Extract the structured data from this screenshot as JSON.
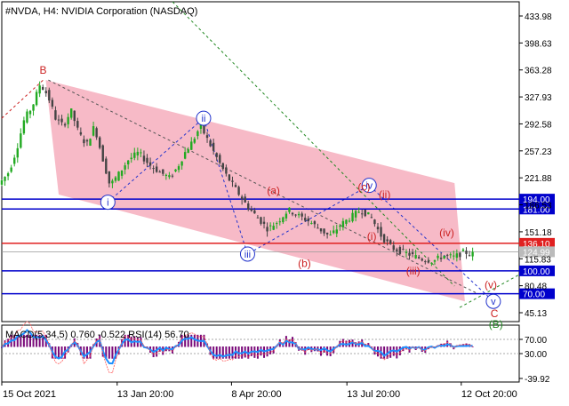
{
  "header": {
    "title": "#NVDA, H4:  NVIDIA Corporation (NASDAQ)"
  },
  "colors": {
    "channel_fill": "#f4a3b4",
    "blue_line": "#0000cc",
    "red_line": "#e02020",
    "candle_bull": "#22aa22",
    "candle_bear": "#444444",
    "wave_red": "#cc2222",
    "wave_blue": "#2233cc",
    "wave_green": "#228822",
    "macd_hist": "#7a0a7a",
    "macd_signal": "#1e90ff",
    "rsi_line": "#ff5555"
  },
  "chart_data": {
    "type": "candlestick",
    "symbol": "#NVDA",
    "timeframe": "H4",
    "ylim": [
      45.13,
      433.98
    ],
    "y_ticks": [
      {
        "value": 433.98,
        "label": "433.98"
      },
      {
        "value": 398.63,
        "label": "398.63"
      },
      {
        "value": 363.28,
        "label": "363.28"
      },
      {
        "value": 327.93,
        "label": "327.93"
      },
      {
        "value": 292.58,
        "label": "292.58"
      },
      {
        "value": 257.23,
        "label": "257.23"
      },
      {
        "value": 221.88,
        "label": "221.88"
      },
      {
        "value": 186.53,
        "label": "186.53"
      },
      {
        "value": 151.18,
        "label": "151.18"
      },
      {
        "value": 115.83,
        "label": "115.83"
      },
      {
        "value": 80.48,
        "label": "80.48"
      },
      {
        "value": 45.13,
        "label": "45.13"
      }
    ],
    "x_ticks": [
      {
        "pos": 0.0,
        "label": "15 Oct 2021"
      },
      {
        "pos": 0.223,
        "label": "13 Jan 20:00"
      },
      {
        "pos": 0.444,
        "label": "8 Apr 20:00"
      },
      {
        "pos": 0.667,
        "label": "13 Jul 20:00"
      },
      {
        "pos": 0.888,
        "label": "12 Oct 20:00"
      }
    ],
    "horizontal_levels": [
      {
        "value": 194.0,
        "label": "194.00",
        "color": "blue"
      },
      {
        "value": 181.0,
        "label": "181.00",
        "color": "blue"
      },
      {
        "value": 136.1,
        "label": "136.10",
        "color": "red"
      },
      {
        "value": 124.99,
        "label": "124.99",
        "color": "gray"
      },
      {
        "value": 100.0,
        "label": "100.00",
        "color": "blue"
      },
      {
        "value": 70.0,
        "label": "70.00",
        "color": "blue"
      }
    ],
    "price_path": [
      [
        0.0,
        213
      ],
      [
        0.02,
        230
      ],
      [
        0.035,
        260
      ],
      [
        0.05,
        300
      ],
      [
        0.065,
        315
      ],
      [
        0.08,
        345
      ],
      [
        0.095,
        330
      ],
      [
        0.11,
        300
      ],
      [
        0.125,
        290
      ],
      [
        0.14,
        310
      ],
      [
        0.155,
        280
      ],
      [
        0.17,
        265
      ],
      [
        0.185,
        290
      ],
      [
        0.2,
        250
      ],
      [
        0.215,
        212
      ],
      [
        0.23,
        225
      ],
      [
        0.25,
        245
      ],
      [
        0.27,
        255
      ],
      [
        0.29,
        240
      ],
      [
        0.31,
        230
      ],
      [
        0.33,
        222
      ],
      [
        0.345,
        235
      ],
      [
        0.36,
        255
      ],
      [
        0.375,
        270
      ],
      [
        0.39,
        290
      ],
      [
        0.405,
        270
      ],
      [
        0.42,
        250
      ],
      [
        0.44,
        225
      ],
      [
        0.46,
        205
      ],
      [
        0.48,
        185
      ],
      [
        0.5,
        170
      ],
      [
        0.52,
        155
      ],
      [
        0.54,
        165
      ],
      [
        0.56,
        180
      ],
      [
        0.58,
        172
      ],
      [
        0.6,
        165
      ],
      [
        0.62,
        155
      ],
      [
        0.64,
        145
      ],
      [
        0.66,
        160
      ],
      [
        0.68,
        170
      ],
      [
        0.7,
        180
      ],
      [
        0.72,
        170
      ],
      [
        0.74,
        145
      ],
      [
        0.76,
        130
      ],
      [
        0.78,
        125
      ],
      [
        0.8,
        120
      ],
      [
        0.82,
        115
      ],
      [
        0.84,
        113
      ],
      [
        0.86,
        120
      ],
      [
        0.88,
        118
      ],
      [
        0.9,
        125
      ],
      [
        0.91,
        122
      ]
    ],
    "wave_labels": [
      {
        "text": "B",
        "x": 0.08,
        "y": 363,
        "color": "red"
      },
      {
        "text": "ii",
        "x": 0.39,
        "y": 300,
        "color": "blue",
        "circled": true
      },
      {
        "text": "i",
        "x": 0.205,
        "y": 190,
        "color": "blue",
        "circled": true
      },
      {
        "text": "iii",
        "x": 0.475,
        "y": 122,
        "color": "blue",
        "circled": true
      },
      {
        "text": "iv",
        "x": 0.71,
        "y": 212,
        "color": "blue",
        "circled": true
      },
      {
        "text": "v",
        "x": 0.95,
        "y": 60,
        "color": "blue",
        "circled": true
      },
      {
        "text": "(a)",
        "x": 0.525,
        "y": 205,
        "color": "red"
      },
      {
        "text": "(b)",
        "x": 0.585,
        "y": 110,
        "color": "red"
      },
      {
        "text": "(c)",
        "x": 0.7,
        "y": 210,
        "color": "red"
      },
      {
        "text": "(i)",
        "x": 0.715,
        "y": 145,
        "color": "red"
      },
      {
        "text": "(ii)",
        "x": 0.74,
        "y": 200,
        "color": "red"
      },
      {
        "text": "(iii)",
        "x": 0.795,
        "y": 100,
        "color": "red"
      },
      {
        "text": "(iv)",
        "x": 0.86,
        "y": 150,
        "color": "red"
      },
      {
        "text": "(v)",
        "x": 0.945,
        "y": 82,
        "color": "red"
      },
      {
        "text": "C",
        "x": 0.952,
        "y": 44,
        "color": "red"
      },
      {
        "text": "(B)",
        "x": 0.955,
        "y": 30,
        "color": "green"
      }
    ],
    "indicator": {
      "label": "MACD(5,34,5) 0.760 -0.522 RSI(14) 56.70",
      "y_ticks": [
        {
          "value": 70.0,
          "label": "70.00"
        },
        {
          "value": 30.0,
          "label": "30.00"
        },
        {
          "value": -39.92,
          "label": "-39.92"
        }
      ],
      "ylim": [
        -39.92,
        100
      ]
    }
  }
}
